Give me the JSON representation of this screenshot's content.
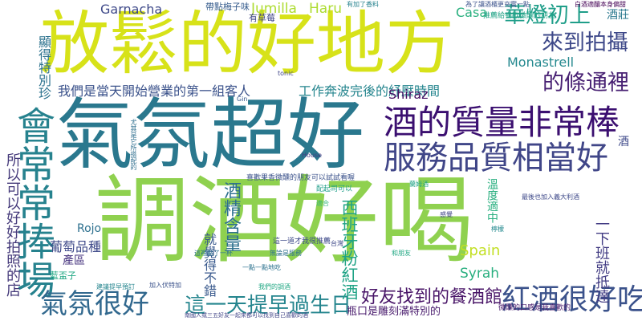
{
  "words": [
    {
      "text": "調酒好喝",
      "color": "#8fd14f"
    },
    {
      "text": "氣氛超好",
      "color": "#2a788e"
    },
    {
      "text": "放鬆的好地方",
      "color": "#d7e219"
    },
    {
      "text": "酒的質量非常棒",
      "color": "#3b0f70"
    },
    {
      "text": "服務品質相當好",
      "color": "#404688"
    },
    {
      "text": "會常常捧場",
      "color": "#26828e"
    },
    {
      "text": "氣氛很好",
      "color": "#31688e"
    },
    {
      "text": "紅酒很好吃",
      "color": "#3b528b"
    },
    {
      "text": "這一天提早過生日",
      "color": "#25858e"
    },
    {
      "text": "好友找到的餐酒館",
      "color": "#481467"
    },
    {
      "text": "華燈初上",
      "color": "#1f9e89"
    },
    {
      "text": "來到拍攝",
      "color": "#3e4989"
    },
    {
      "text": "的條通裡",
      "color": "#482173"
    },
    {
      "text": "我們是當天開始營業的第一組客人",
      "color": "#3b528b"
    },
    {
      "text": "工作奔波完後的紓壓時間",
      "color": "#25858e"
    },
    {
      "text": "西班牙粉紅酒",
      "color": "#20a386"
    },
    {
      "text": "酒精含量",
      "color": "#2d708e"
    },
    {
      "text": "葡萄品種",
      "color": "#3e4989"
    },
    {
      "text": "Syrah",
      "color": "#29af7f"
    },
    {
      "text": "Spain",
      "color": "#c2df23"
    },
    {
      "text": "Rojo",
      "color": "#2d708e"
    },
    {
      "text": "Shiraz",
      "color": "#471063"
    },
    {
      "text": "Monastrell",
      "color": "#23888e"
    },
    {
      "text": "Garnacha",
      "color": "#3e4989"
    },
    {
      "text": "Jumilla",
      "color": "#addc30"
    },
    {
      "text": "Haru",
      "color": "#addc30"
    },
    {
      "text": "Casa",
      "color": "#2ab07f"
    },
    {
      "text": "帶點梅子味",
      "color": "#365c8d"
    },
    {
      "text": "有草莓",
      "color": "#404688"
    },
    {
      "text": "酒莊",
      "color": "#2a788e"
    },
    {
      "text": "產區",
      "color": "#46337e"
    },
    {
      "text": "所以可以好好拍照的店",
      "color": "#44397a"
    },
    {
      "text": "顯得特別珍",
      "color": "#2c728e"
    },
    {
      "text": "一下班就抵達",
      "color": "#433d84"
    },
    {
      "text": "瓶口是雕刻滿特別的",
      "color": "#481a6c"
    },
    {
      "text": "就覺得不錯",
      "color": "#38588c"
    },
    {
      "text": "溫度適中",
      "color": "#29af7f"
    },
    {
      "text": "酒",
      "color": "#3e4989"
    },
    {
      "text": "藍盃子",
      "color": "#22a884"
    },
    {
      "text": "推薦給喜歡微醺的朋友",
      "color": "#20a386"
    },
    {
      "text": "為了讓酒櫃更充實一點",
      "color": "#3b528b"
    },
    {
      "text": "白酒適釀本身偏甜",
      "color": "#440154"
    },
    {
      "text": "有加了香料",
      "color": "#26828e"
    },
    {
      "text": "喜歡果香微醺的朋友可以試試看喔",
      "color": "#3b528b"
    },
    {
      "text": "配起司可以",
      "color": "#1f9e89"
    },
    {
      "text": "這一道才我很推薦",
      "color": "#3e4989"
    },
    {
      "text": "微醺的口感是我喜歡的",
      "color": "#481a6c"
    },
    {
      "text": "最後也加入義大利酒",
      "color": "#3e4989"
    },
    {
      "text": "tonic",
      "color": "#404688"
    },
    {
      "text": "Gin",
      "color": "#38588c"
    },
    {
      "text": "House",
      "color": "#443a83"
    },
    {
      "text": "一點一點地吃",
      "color": "#2c728e"
    },
    {
      "text": "我們的調酒",
      "color": "#22a884"
    },
    {
      "text": "無論是服務",
      "color": "#2d708e"
    },
    {
      "text": "建議提早預訂",
      "color": "#25858e"
    },
    {
      "text": "加入伏特加",
      "color": "#3b528b"
    },
    {
      "text": "南國人或三五好友一起來都可以找到自己喜歡的酒",
      "color": "#414487"
    },
    {
      "text": "適合",
      "color": "#35b779"
    },
    {
      "text": "尤其是它所搭配的",
      "color": "#2e6e8e"
    },
    {
      "text": "這裡點了一杯",
      "color": "#2c728e"
    },
    {
      "text": "蘭姆酒",
      "color": "#20a386"
    },
    {
      "text": "感覺",
      "color": "#414487"
    },
    {
      "text": "台灣",
      "color": "#3e4989"
    },
    {
      "text": "和朋友",
      "color": "#22a884"
    },
    {
      "text": "檸檬",
      "color": "#23898e"
    }
  ]
}
